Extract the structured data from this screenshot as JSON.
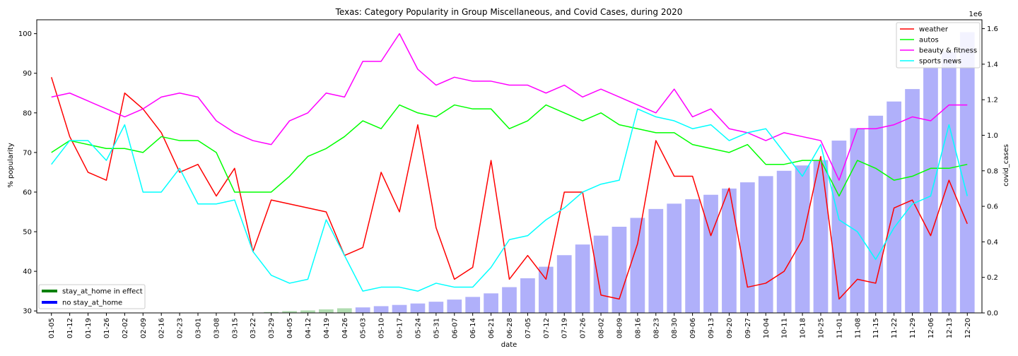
{
  "chart_data": {
    "type": "line",
    "title": "Texas: Category Popularity in Group Miscellaneous, and Covid Cases, during 2020",
    "xlabel": "date",
    "ylabel": "% popularity",
    "y2label": "covid_cases",
    "y2_offset_label": "1e6",
    "ylim": [
      29.5,
      103.5
    ],
    "y2lim": [
      0,
      1.65
    ],
    "yticks": [
      30,
      40,
      50,
      60,
      70,
      80,
      90,
      100
    ],
    "y2ticks": [
      0.0,
      0.2,
      0.4,
      0.6,
      0.8,
      1.0,
      1.2,
      1.4,
      1.6
    ],
    "y2ticklabels": [
      "0.0",
      "0.2",
      "0.4",
      "0.6",
      "0.8",
      "1.0",
      "1.2",
      "1.4",
      "1.6"
    ],
    "categories": [
      "01-05",
      "01-12",
      "01-19",
      "01-26",
      "02-02",
      "02-09",
      "02-16",
      "02-23",
      "03-01",
      "03-08",
      "03-15",
      "03-22",
      "03-29",
      "04-05",
      "04-12",
      "04-19",
      "04-26",
      "05-03",
      "05-10",
      "05-17",
      "05-24",
      "05-31",
      "06-07",
      "06-14",
      "06-21",
      "06-28",
      "07-05",
      "07-12",
      "07-19",
      "07-26",
      "08-02",
      "08-09",
      "08-16",
      "08-23",
      "08-30",
      "09-06",
      "09-13",
      "09-20",
      "09-27",
      "10-04",
      "10-11",
      "10-18",
      "10-25",
      "11-01",
      "11-08",
      "11-15",
      "11-22",
      "11-29",
      "12-06",
      "12-13",
      "12-20"
    ],
    "series": [
      {
        "name": "weather",
        "color": "#ff0000",
        "values": [
          89,
          74,
          65,
          63,
          85,
          81,
          75,
          65,
          67,
          59,
          66,
          45,
          58,
          57,
          56,
          55,
          44,
          46,
          65,
          55,
          77,
          51,
          38,
          41,
          68,
          38,
          44,
          38,
          60,
          60,
          34,
          33,
          47,
          73,
          64,
          64,
          49,
          61,
          36,
          37,
          40,
          48,
          69,
          33,
          38,
          37,
          56,
          58,
          49,
          63,
          52
        ]
      },
      {
        "name": "autos",
        "color": "#00ff00",
        "values": [
          70,
          73,
          72,
          71,
          71,
          70,
          74,
          73,
          73,
          70,
          60,
          60,
          60,
          64,
          69,
          71,
          74,
          78,
          76,
          82,
          80,
          79,
          82,
          81,
          81,
          76,
          78,
          82,
          80,
          78,
          80,
          77,
          76,
          75,
          75,
          72,
          71,
          70,
          72,
          67,
          67,
          68,
          68,
          59,
          68,
          66,
          63,
          64,
          66,
          66,
          67
        ]
      },
      {
        "name": "beauty & fitness",
        "color": "#ff00ff",
        "values": [
          84,
          85,
          83,
          81,
          79,
          81,
          84,
          85,
          84,
          78,
          75,
          73,
          72,
          78,
          80,
          85,
          84,
          93,
          93,
          100,
          91,
          87,
          89,
          88,
          88,
          87,
          87,
          85,
          87,
          84,
          86,
          84,
          82,
          80,
          86,
          79,
          81,
          76,
          75,
          73,
          75,
          74,
          73,
          63,
          76,
          76,
          77,
          79,
          78,
          82,
          82
        ]
      },
      {
        "name": "sports news",
        "color": "#00ffff",
        "values": [
          67,
          73,
          73,
          68,
          77,
          60,
          60,
          66,
          57,
          57,
          58,
          45,
          39,
          37,
          38,
          53,
          44,
          35,
          36,
          36,
          35,
          37,
          36,
          36,
          41,
          48,
          49,
          53,
          56,
          60,
          62,
          63,
          81,
          79,
          78,
          76,
          77,
          73,
          75,
          76,
          70,
          64,
          72,
          53,
          50,
          43,
          51,
          57,
          59,
          77,
          59
        ]
      }
    ],
    "bar_series": {
      "name": "covid_cases",
      "color": "#b0b0fa",
      "early_color": "#b0dcb0",
      "early_count": 17,
      "values": [
        0,
        0,
        0,
        0,
        0,
        0,
        0,
        0,
        0,
        0,
        0,
        0.002,
        0.005,
        0.01,
        0.014,
        0.02,
        0.026,
        0.031,
        0.038,
        0.045,
        0.053,
        0.063,
        0.075,
        0.09,
        0.11,
        0.145,
        0.195,
        0.26,
        0.325,
        0.385,
        0.435,
        0.485,
        0.535,
        0.585,
        0.615,
        0.64,
        0.665,
        0.7,
        0.735,
        0.77,
        0.8,
        0.83,
        0.86,
        0.97,
        1.04,
        1.11,
        1.19,
        1.26,
        1.38,
        1.47,
        1.58
      ]
    },
    "legend": {
      "placement": "top-right",
      "entries": [
        "weather",
        "autos",
        "beauty & fitness",
        "sports news"
      ]
    },
    "legend2": {
      "placement": "bottom-left",
      "entries": [
        {
          "label": "stay_at_home in effect",
          "color": "#008000"
        },
        {
          "label": "no stay_at_home",
          "color": "#0000ff"
        }
      ]
    },
    "grid": false
  }
}
